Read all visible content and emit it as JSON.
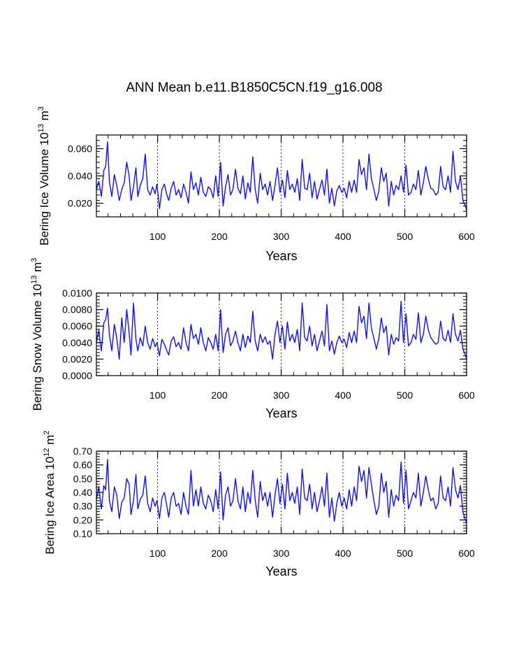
{
  "title": "ANN Mean b.e11.B1850C5CN.f19_g16.008",
  "line_color": "#1010ff",
  "chart_data": [
    {
      "type": "line",
      "id": "ice-volume",
      "ylabel_main": "Bering Ice Volume 10",
      "ylabel_exp": "13",
      "ylabel_unit": " m",
      "ylabel_unit_exp": "3",
      "xlabel": "Years",
      "xlim": [
        1,
        600
      ],
      "ylim": [
        0.01,
        0.07
      ],
      "xticks": [
        100,
        200,
        300,
        400,
        500,
        600
      ],
      "xtick_labels": [
        "100",
        "200",
        "300",
        "400",
        "500",
        "600"
      ],
      "yticks": [
        0.02,
        0.04,
        0.06
      ],
      "ytick_labels": [
        "0.020",
        "0.040",
        "0.060"
      ],
      "ymin_tick_step": 0.004,
      "grid": "dashed vertical at x ticks",
      "series": [
        {
          "name": "Bering Ice Volume",
          "x": [
            1,
            5,
            9,
            13,
            16,
            19,
            22,
            26,
            30,
            34,
            38,
            42,
            46,
            50,
            54,
            57,
            61,
            65,
            68,
            72,
            76,
            80,
            84,
            88,
            92,
            96,
            99,
            103,
            107,
            111,
            115,
            118,
            122,
            126,
            130,
            134,
            138,
            142,
            146,
            150,
            154,
            158,
            162,
            166,
            170,
            174,
            178,
            182,
            186,
            190,
            194,
            198,
            202,
            206,
            210,
            214,
            218,
            222,
            226,
            230,
            234,
            238,
            242,
            246,
            250,
            254,
            258,
            262,
            266,
            270,
            274,
            278,
            282,
            286,
            290,
            294,
            298,
            302,
            306,
            310,
            314,
            318,
            322,
            326,
            330,
            334,
            338,
            342,
            346,
            350,
            354,
            358,
            362,
            366,
            370,
            374,
            378,
            382,
            386,
            390,
            394,
            398,
            402,
            406,
            410,
            414,
            418,
            422,
            426,
            430,
            434,
            438,
            442,
            446,
            450,
            454,
            458,
            462,
            466,
            470,
            474,
            478,
            482,
            486,
            490,
            494,
            498,
            502,
            506,
            510,
            514,
            518,
            522,
            526,
            530,
            534,
            538,
            542,
            546,
            550,
            554,
            558,
            562,
            566,
            570,
            574,
            578,
            582,
            586,
            590,
            594,
            598,
            600
          ],
          "values": [
            0.03,
            0.036,
            0.025,
            0.044,
            0.047,
            0.065,
            0.036,
            0.025,
            0.041,
            0.033,
            0.022,
            0.03,
            0.035,
            0.05,
            0.04,
            0.022,
            0.032,
            0.046,
            0.025,
            0.033,
            0.038,
            0.056,
            0.03,
            0.026,
            0.032,
            0.027,
            0.034,
            0.016,
            0.03,
            0.034,
            0.026,
            0.022,
            0.031,
            0.036,
            0.026,
            0.03,
            0.024,
            0.034,
            0.028,
            0.02,
            0.043,
            0.03,
            0.035,
            0.026,
            0.039,
            0.028,
            0.025,
            0.032,
            0.03,
            0.024,
            0.04,
            0.025,
            0.05,
            0.018,
            0.032,
            0.041,
            0.026,
            0.03,
            0.045,
            0.031,
            0.027,
            0.04,
            0.023,
            0.035,
            0.028,
            0.054,
            0.03,
            0.02,
            0.042,
            0.03,
            0.034,
            0.026,
            0.036,
            0.022,
            0.033,
            0.046,
            0.028,
            0.037,
            0.024,
            0.044,
            0.03,
            0.034,
            0.028,
            0.038,
            0.022,
            0.052,
            0.031,
            0.03,
            0.042,
            0.024,
            0.036,
            0.023,
            0.03,
            0.037,
            0.026,
            0.045,
            0.02,
            0.031,
            0.018,
            0.029,
            0.033,
            0.028,
            0.031,
            0.024,
            0.036,
            0.028,
            0.037,
            0.028,
            0.052,
            0.041,
            0.046,
            0.03,
            0.056,
            0.038,
            0.03,
            0.022,
            0.029,
            0.046,
            0.036,
            0.042,
            0.018,
            0.036,
            0.026,
            0.033,
            0.03,
            0.04,
            0.028,
            0.048,
            0.026,
            0.028,
            0.034,
            0.03,
            0.044,
            0.026,
            0.035,
            0.047,
            0.038,
            0.031,
            0.03,
            0.026,
            0.028,
            0.047,
            0.032,
            0.03,
            0.04,
            0.028,
            0.058,
            0.036,
            0.03,
            0.04,
            0.022,
            0.018,
            0.015
          ]
        }
      ]
    },
    {
      "type": "line",
      "id": "snow-volume",
      "ylabel_main": "Bering Snow Volume 10",
      "ylabel_exp": "13",
      "ylabel_unit": " m",
      "ylabel_unit_exp": "3",
      "xlabel": "Years",
      "xlim": [
        1,
        600
      ],
      "ylim": [
        0.0,
        0.01
      ],
      "xticks": [
        100,
        200,
        300,
        400,
        500,
        600
      ],
      "xtick_labels": [
        "100",
        "200",
        "300",
        "400",
        "500",
        "600"
      ],
      "yticks": [
        0.0,
        0.002,
        0.004,
        0.006,
        0.008,
        0.01
      ],
      "ytick_labels": [
        "0.0000",
        "0.0020",
        "0.0040",
        "0.0060",
        "0.0080",
        "0.0100"
      ],
      "ymin_tick_step": 0.0004,
      "grid": "dashed vertical at x ticks",
      "series": [
        {
          "name": "Bering Snow Volume",
          "x": [
            1,
            5,
            9,
            13,
            16,
            19,
            22,
            26,
            30,
            34,
            38,
            42,
            46,
            50,
            54,
            57,
            61,
            65,
            68,
            72,
            76,
            80,
            84,
            88,
            92,
            96,
            99,
            103,
            107,
            111,
            115,
            118,
            122,
            126,
            130,
            134,
            138,
            142,
            146,
            150,
            154,
            158,
            162,
            166,
            170,
            174,
            178,
            182,
            186,
            190,
            194,
            198,
            202,
            206,
            210,
            214,
            218,
            222,
            226,
            230,
            234,
            238,
            242,
            246,
            250,
            254,
            258,
            262,
            266,
            270,
            274,
            278,
            282,
            286,
            290,
            294,
            298,
            302,
            306,
            310,
            314,
            318,
            322,
            326,
            330,
            334,
            338,
            342,
            346,
            350,
            354,
            358,
            362,
            366,
            370,
            374,
            378,
            382,
            386,
            390,
            394,
            398,
            402,
            406,
            410,
            414,
            418,
            422,
            426,
            430,
            434,
            438,
            442,
            446,
            450,
            454,
            458,
            462,
            466,
            470,
            474,
            478,
            482,
            486,
            490,
            494,
            498,
            502,
            506,
            510,
            514,
            518,
            522,
            526,
            530,
            534,
            538,
            542,
            546,
            550,
            554,
            558,
            562,
            566,
            570,
            574,
            578,
            582,
            586,
            590,
            594,
            598,
            600
          ],
          "values": [
            0.004,
            0.0055,
            0.003,
            0.0064,
            0.0068,
            0.0082,
            0.005,
            0.003,
            0.0062,
            0.0045,
            0.002,
            0.007,
            0.004,
            0.008,
            0.0052,
            0.0025,
            0.0088,
            0.0044,
            0.003,
            0.0046,
            0.0036,
            0.006,
            0.004,
            0.0032,
            0.0045,
            0.0035,
            0.004,
            0.0024,
            0.0044,
            0.0038,
            0.003,
            0.0025,
            0.0042,
            0.0047,
            0.0035,
            0.004,
            0.0032,
            0.0058,
            0.004,
            0.003,
            0.0062,
            0.0045,
            0.005,
            0.0038,
            0.0058,
            0.004,
            0.003,
            0.0046,
            0.004,
            0.0032,
            0.005,
            0.003,
            0.008,
            0.0028,
            0.005,
            0.0058,
            0.0036,
            0.0042,
            0.0054,
            0.004,
            0.003,
            0.005,
            0.0034,
            0.0048,
            0.004,
            0.0078,
            0.0042,
            0.003,
            0.005,
            0.004,
            0.0047,
            0.0038,
            0.0042,
            0.002,
            0.005,
            0.0066,
            0.004,
            0.006,
            0.0032,
            0.0065,
            0.0042,
            0.005,
            0.004,
            0.0056,
            0.003,
            0.0088,
            0.0046,
            0.0042,
            0.006,
            0.0036,
            0.005,
            0.003,
            0.0042,
            0.0054,
            0.0036,
            0.0086,
            0.003,
            0.0042,
            0.0026,
            0.004,
            0.0048,
            0.004,
            0.0044,
            0.0034,
            0.0052,
            0.004,
            0.0054,
            0.004,
            0.0084,
            0.0064,
            0.0072,
            0.0045,
            0.0088,
            0.0058,
            0.0045,
            0.0032,
            0.0045,
            0.007,
            0.0052,
            0.006,
            0.0025,
            0.005,
            0.0038,
            0.0046,
            0.0042,
            0.009,
            0.004,
            0.0075,
            0.0036,
            0.004,
            0.005,
            0.0044,
            0.0076,
            0.004,
            0.005,
            0.0072,
            0.0056,
            0.0046,
            0.0042,
            0.0038,
            0.004,
            0.0066,
            0.0045,
            0.0042,
            0.0055,
            0.004,
            0.0075,
            0.005,
            0.0042,
            0.0055,
            0.0032,
            0.0025,
            0.002
          ]
        }
      ]
    },
    {
      "type": "line",
      "id": "ice-area",
      "ylabel_main": "Bering Ice Area 10",
      "ylabel_exp": "12",
      "ylabel_unit": " m",
      "ylabel_unit_exp": "2",
      "xlabel": "Years",
      "xlim": [
        1,
        600
      ],
      "ylim": [
        0.1,
        0.7
      ],
      "xticks": [
        100,
        200,
        300,
        400,
        500,
        600
      ],
      "xtick_labels": [
        "100",
        "200",
        "300",
        "400",
        "500",
        "600"
      ],
      "yticks": [
        0.1,
        0.2,
        0.3,
        0.4,
        0.5,
        0.6,
        0.7
      ],
      "ytick_labels": [
        "0.10",
        "0.20",
        "0.30",
        "0.40",
        "0.50",
        "0.60",
        "0.70"
      ],
      "ymin_tick_step": 0.02,
      "grid": "dashed vertical at x ticks",
      "series": [
        {
          "name": "Bering Ice Area",
          "x": [
            1,
            5,
            9,
            13,
            16,
            19,
            22,
            26,
            30,
            34,
            38,
            42,
            46,
            50,
            54,
            57,
            61,
            65,
            68,
            72,
            76,
            80,
            84,
            88,
            92,
            96,
            99,
            103,
            107,
            111,
            115,
            118,
            122,
            126,
            130,
            134,
            138,
            142,
            146,
            150,
            154,
            158,
            162,
            166,
            170,
            174,
            178,
            182,
            186,
            190,
            194,
            198,
            202,
            206,
            210,
            214,
            218,
            222,
            226,
            230,
            234,
            238,
            242,
            246,
            250,
            254,
            258,
            262,
            266,
            270,
            274,
            278,
            282,
            286,
            290,
            294,
            298,
            302,
            306,
            310,
            314,
            318,
            322,
            326,
            330,
            334,
            338,
            342,
            346,
            350,
            354,
            358,
            362,
            366,
            370,
            374,
            378,
            382,
            386,
            390,
            394,
            398,
            402,
            406,
            410,
            414,
            418,
            422,
            426,
            430,
            434,
            438,
            442,
            446,
            450,
            454,
            458,
            462,
            466,
            470,
            474,
            478,
            482,
            486,
            490,
            494,
            498,
            502,
            506,
            510,
            514,
            518,
            522,
            526,
            530,
            534,
            538,
            542,
            546,
            550,
            554,
            558,
            562,
            566,
            570,
            574,
            578,
            582,
            586,
            590,
            594,
            598,
            600
          ],
          "values": [
            0.35,
            0.44,
            0.28,
            0.45,
            0.42,
            0.64,
            0.34,
            0.26,
            0.44,
            0.38,
            0.21,
            0.33,
            0.36,
            0.5,
            0.46,
            0.24,
            0.34,
            0.53,
            0.28,
            0.35,
            0.38,
            0.52,
            0.32,
            0.26,
            0.36,
            0.3,
            0.34,
            0.21,
            0.36,
            0.4,
            0.3,
            0.22,
            0.36,
            0.4,
            0.3,
            0.32,
            0.24,
            0.4,
            0.3,
            0.24,
            0.56,
            0.3,
            0.42,
            0.3,
            0.44,
            0.32,
            0.28,
            0.38,
            0.34,
            0.26,
            0.42,
            0.28,
            0.55,
            0.2,
            0.38,
            0.44,
            0.3,
            0.34,
            0.5,
            0.34,
            0.28,
            0.44,
            0.26,
            0.4,
            0.32,
            0.56,
            0.34,
            0.22,
            0.48,
            0.34,
            0.4,
            0.3,
            0.4,
            0.22,
            0.38,
            0.5,
            0.32,
            0.46,
            0.28,
            0.54,
            0.34,
            0.4,
            0.32,
            0.44,
            0.24,
            0.57,
            0.36,
            0.34,
            0.46,
            0.28,
            0.4,
            0.26,
            0.34,
            0.44,
            0.3,
            0.54,
            0.22,
            0.36,
            0.19,
            0.32,
            0.4,
            0.3,
            0.36,
            0.28,
            0.42,
            0.3,
            0.44,
            0.34,
            0.59,
            0.48,
            0.56,
            0.36,
            0.58,
            0.46,
            0.34,
            0.24,
            0.3,
            0.54,
            0.4,
            0.48,
            0.22,
            0.42,
            0.3,
            0.38,
            0.34,
            0.62,
            0.32,
            0.56,
            0.28,
            0.34,
            0.4,
            0.36,
            0.54,
            0.3,
            0.4,
            0.52,
            0.42,
            0.34,
            0.36,
            0.28,
            0.32,
            0.52,
            0.36,
            0.34,
            0.44,
            0.3,
            0.58,
            0.42,
            0.36,
            0.45,
            0.26,
            0.2,
            0.18
          ]
        }
      ]
    }
  ]
}
